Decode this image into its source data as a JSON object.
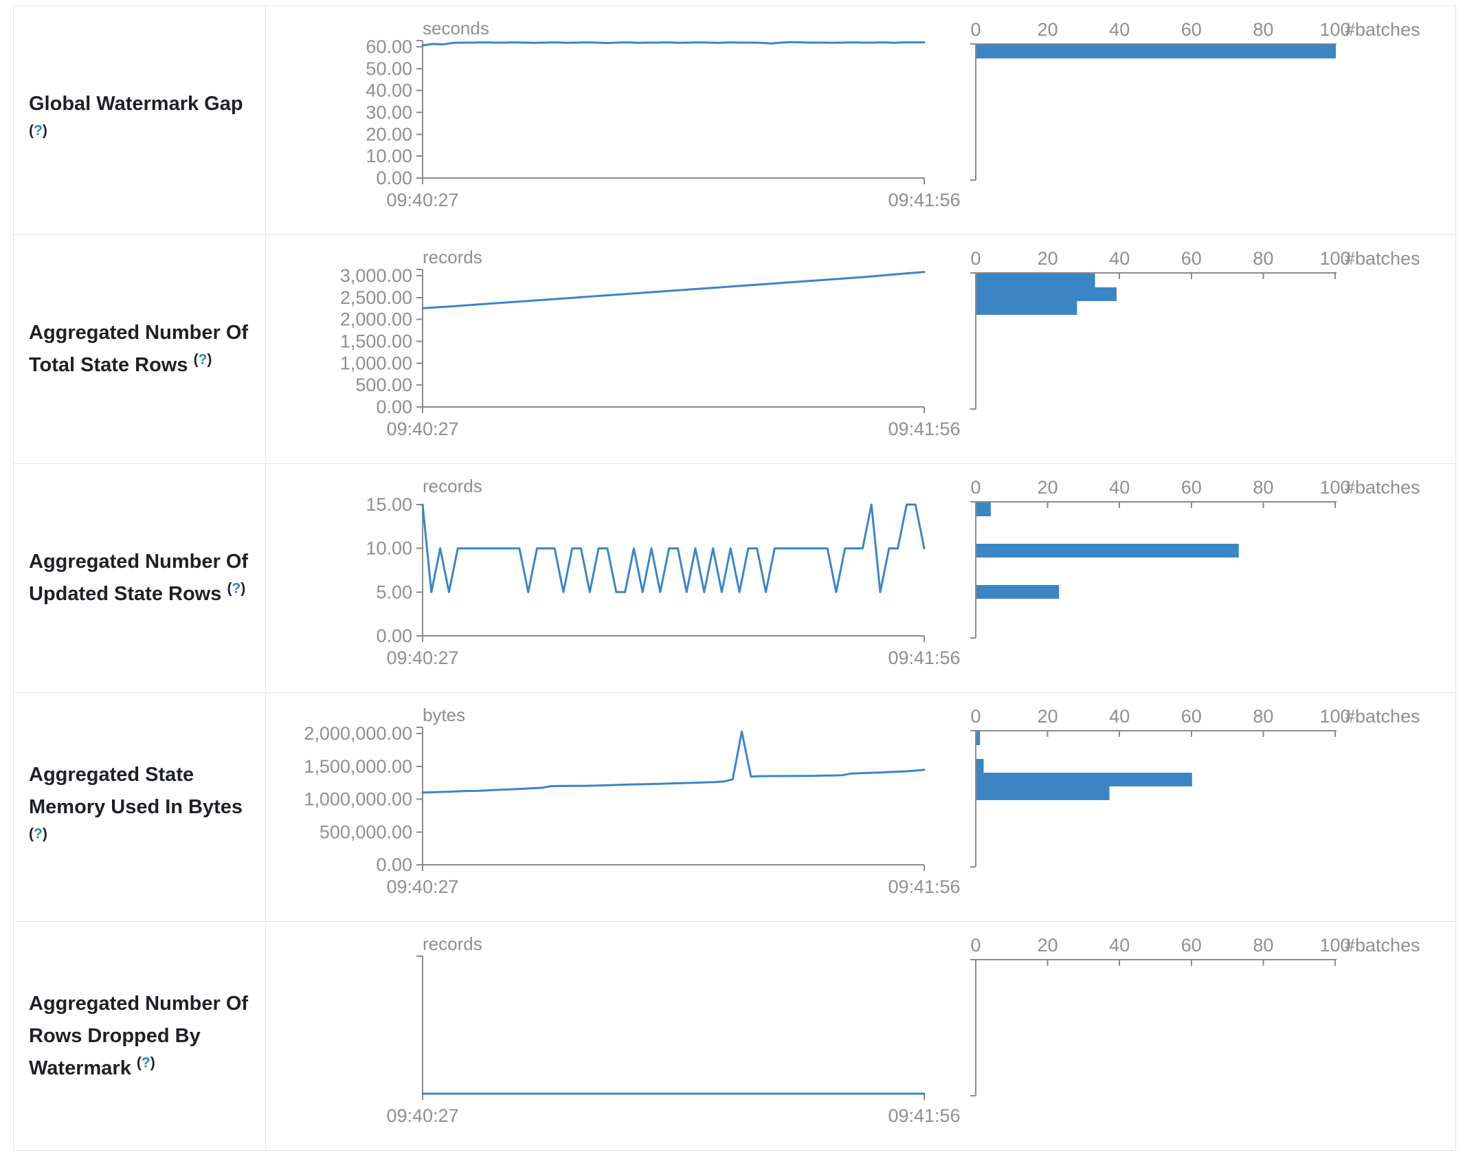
{
  "ui": {
    "help_open": "(",
    "help_q": "?",
    "help_close": ")"
  },
  "colors": {
    "accent": "#3c85c5",
    "axis": "#8a8a8a",
    "tick_text": "#8f8f8f",
    "label_text": "#1d2125",
    "help_link": "#2f80c3",
    "border": "#e1e4e8"
  },
  "chart_data": [
    {
      "metric": "Global Watermark Gap",
      "metric_display": "Global Watermark Gap",
      "help_own_line": true,
      "timeline": {
        "type": "line",
        "unit": "seconds",
        "x_labels": [
          "09:40:27",
          "09:41:56"
        ],
        "y_ticks": [
          {
            "v": 60,
            "label": "60.00"
          },
          {
            "v": 50,
            "label": "50.00"
          },
          {
            "v": 40,
            "label": "40.00"
          },
          {
            "v": 30,
            "label": "30.00"
          },
          {
            "v": 20,
            "label": "20.00"
          },
          {
            "v": 10,
            "label": "10.00"
          },
          {
            "v": 0,
            "label": "0.00"
          }
        ],
        "y_axis_max": 60,
        "overhang_tick": true,
        "values": [
          60.6,
          61.3,
          61.1,
          61.8,
          61.9,
          61.9,
          62,
          61.9,
          61.9,
          62,
          61.9,
          61.8,
          61.9,
          62,
          61.8,
          61.9,
          62,
          61.9,
          61.7,
          61.9,
          62,
          61.8,
          61.9,
          61.9,
          62,
          61.8,
          61.9,
          62,
          61.9,
          61.8,
          62,
          61.9,
          61.9,
          61.8,
          61.5,
          61.9,
          62.1,
          62,
          61.9,
          61.9,
          61.8,
          61.9,
          62,
          61.9,
          61.9,
          62,
          61.8,
          62,
          62,
          62
        ]
      },
      "histogram": {
        "type": "bar",
        "x_ticks": [
          {
            "v": 0,
            "label": "0"
          },
          {
            "v": 20,
            "label": "20"
          },
          {
            "v": 40,
            "label": "40"
          },
          {
            "v": 60,
            "label": "60"
          },
          {
            "v": 80,
            "label": "80"
          },
          {
            "v": 100,
            "label": "100"
          }
        ],
        "x_axis_label": "#batches",
        "x_max": 100,
        "bars": [
          {
            "bin": 0,
            "count": 100
          }
        ]
      }
    },
    {
      "metric": "Aggregated Number Of Total State Rows",
      "metric_display": "Aggregated Number Of\nTotal State Rows",
      "help_own_line": false,
      "timeline": {
        "type": "line",
        "unit": "records",
        "x_labels": [
          "09:40:27",
          "09:41:56"
        ],
        "y_ticks": [
          {
            "v": 3000,
            "label": "3,000.00"
          },
          {
            "v": 2500,
            "label": "2,500.00"
          },
          {
            "v": 2000,
            "label": "2,000.00"
          },
          {
            "v": 1500,
            "label": "1,500.00"
          },
          {
            "v": 1000,
            "label": "1,000.00"
          },
          {
            "v": 500,
            "label": "500.00"
          },
          {
            "v": 0,
            "label": "0.00"
          }
        ],
        "y_axis_max": 3000,
        "overhang_tick": true,
        "values": [
          2255,
          2300,
          2348,
          2395,
          2442,
          2490,
          2538,
          2586,
          2634,
          2682,
          2730,
          2778,
          2826,
          2874,
          2922,
          2970,
          3030,
          3085
        ]
      },
      "histogram": {
        "type": "bar",
        "x_ticks": [
          {
            "v": 0,
            "label": "0"
          },
          {
            "v": 20,
            "label": "20"
          },
          {
            "v": 40,
            "label": "40"
          },
          {
            "v": 60,
            "label": "60"
          },
          {
            "v": 80,
            "label": "80"
          },
          {
            "v": 100,
            "label": "100"
          }
        ],
        "x_axis_label": "#batches",
        "x_max": 100,
        "bars": [
          {
            "bin": 0,
            "count": 33
          },
          {
            "bin": 1,
            "count": 39
          },
          {
            "bin": 2,
            "count": 28
          }
        ]
      }
    },
    {
      "metric": "Aggregated Number Of Updated State Rows",
      "metric_display": "Aggregated Number Of\nUpdated State Rows",
      "help_own_line": false,
      "timeline": {
        "type": "line",
        "unit": "records",
        "x_labels": [
          "09:40:27",
          "09:41:56"
        ],
        "y_ticks": [
          {
            "v": 15,
            "label": "15.00"
          },
          {
            "v": 10,
            "label": "10.00"
          },
          {
            "v": 5,
            "label": "5.00"
          },
          {
            "v": 0,
            "label": "0.00"
          }
        ],
        "y_axis_max": 15,
        "overhang_tick": false,
        "values": [
          15,
          5,
          10,
          5,
          10,
          10,
          10,
          10,
          10,
          10,
          10,
          10,
          5,
          10,
          10,
          10,
          5,
          10,
          10,
          5,
          10,
          10,
          5,
          5,
          10,
          5,
          10,
          5,
          10,
          10,
          5,
          10,
          5,
          10,
          5,
          10,
          5,
          10,
          10,
          5,
          10,
          10,
          10,
          10,
          10,
          10,
          10,
          5,
          10,
          10,
          10,
          15,
          5,
          10,
          10,
          15,
          15,
          10
        ]
      },
      "histogram": {
        "type": "bar",
        "x_ticks": [
          {
            "v": 0,
            "label": "0"
          },
          {
            "v": 20,
            "label": "20"
          },
          {
            "v": 40,
            "label": "40"
          },
          {
            "v": 60,
            "label": "60"
          },
          {
            "v": 80,
            "label": "80"
          },
          {
            "v": 100,
            "label": "100"
          }
        ],
        "x_axis_label": "#batches",
        "x_max": 100,
        "bars": [
          {
            "bin": 0,
            "count": 4
          },
          {
            "bin": 3,
            "count": 73
          },
          {
            "bin": 6,
            "count": 23
          }
        ]
      }
    },
    {
      "metric": "Aggregated State Memory Used In Bytes",
      "metric_display": "Aggregated State\nMemory Used In Bytes",
      "help_own_line": true,
      "timeline": {
        "type": "line",
        "unit": "bytes",
        "x_labels": [
          "09:40:27",
          "09:41:56"
        ],
        "y_ticks": [
          {
            "v": 2000000,
            "label": "2,000,000.00"
          },
          {
            "v": 1500000,
            "label": "1,500,000.00"
          },
          {
            "v": 1000000,
            "label": "1,000,000.00"
          },
          {
            "v": 500000,
            "label": "500,000.00"
          },
          {
            "v": 0,
            "label": "0.00"
          }
        ],
        "y_axis_max": 2000000,
        "overhang_tick": true,
        "values": [
          1100000,
          1105000,
          1110000,
          1112000,
          1120000,
          1125000,
          1126000,
          1132000,
          1140000,
          1146000,
          1152000,
          1158000,
          1166000,
          1172000,
          1196000,
          1200000,
          1201000,
          1202000,
          1203000,
          1206000,
          1210000,
          1215000,
          1220000,
          1224000,
          1226000,
          1230000,
          1234000,
          1238000,
          1242000,
          1246000,
          1250000,
          1255000,
          1260000,
          1268000,
          1300000,
          2030000,
          1345000,
          1350000,
          1351000,
          1352000,
          1352000,
          1353000,
          1354000,
          1355000,
          1358000,
          1360000,
          1364000,
          1390000,
          1396000,
          1400000,
          1404000,
          1410000,
          1418000,
          1424000,
          1434000,
          1448000
        ]
      },
      "histogram": {
        "type": "bar",
        "x_ticks": [
          {
            "v": 0,
            "label": "0"
          },
          {
            "v": 20,
            "label": "20"
          },
          {
            "v": 40,
            "label": "40"
          },
          {
            "v": 60,
            "label": "60"
          },
          {
            "v": 80,
            "label": "80"
          },
          {
            "v": 100,
            "label": "100"
          }
        ],
        "x_axis_label": "#batches",
        "x_max": 100,
        "bars": [
          {
            "bin": 0,
            "count": 1
          },
          {
            "bin": 2,
            "count": 2
          },
          {
            "bin": 3,
            "count": 60
          },
          {
            "bin": 4,
            "count": 37
          }
        ]
      }
    },
    {
      "metric": "Aggregated Number Of Rows Dropped By Watermark",
      "metric_display": "Aggregated Number Of\nRows Dropped By\nWatermark",
      "help_own_line": false,
      "timeline": {
        "type": "line",
        "unit": "records",
        "x_labels": [
          "09:40:27",
          "09:41:56"
        ],
        "y_ticks": [],
        "y_axis_max": 1,
        "overhang_tick": true,
        "values": [
          0,
          0,
          0,
          0,
          0,
          0,
          0,
          0,
          0,
          0
        ]
      },
      "histogram": {
        "type": "bar",
        "x_ticks": [
          {
            "v": 0,
            "label": "0"
          },
          {
            "v": 20,
            "label": "20"
          },
          {
            "v": 40,
            "label": "40"
          },
          {
            "v": 60,
            "label": "60"
          },
          {
            "v": 80,
            "label": "80"
          },
          {
            "v": 100,
            "label": "100"
          }
        ],
        "x_axis_label": "#batches",
        "x_max": 100,
        "bars": []
      }
    }
  ]
}
